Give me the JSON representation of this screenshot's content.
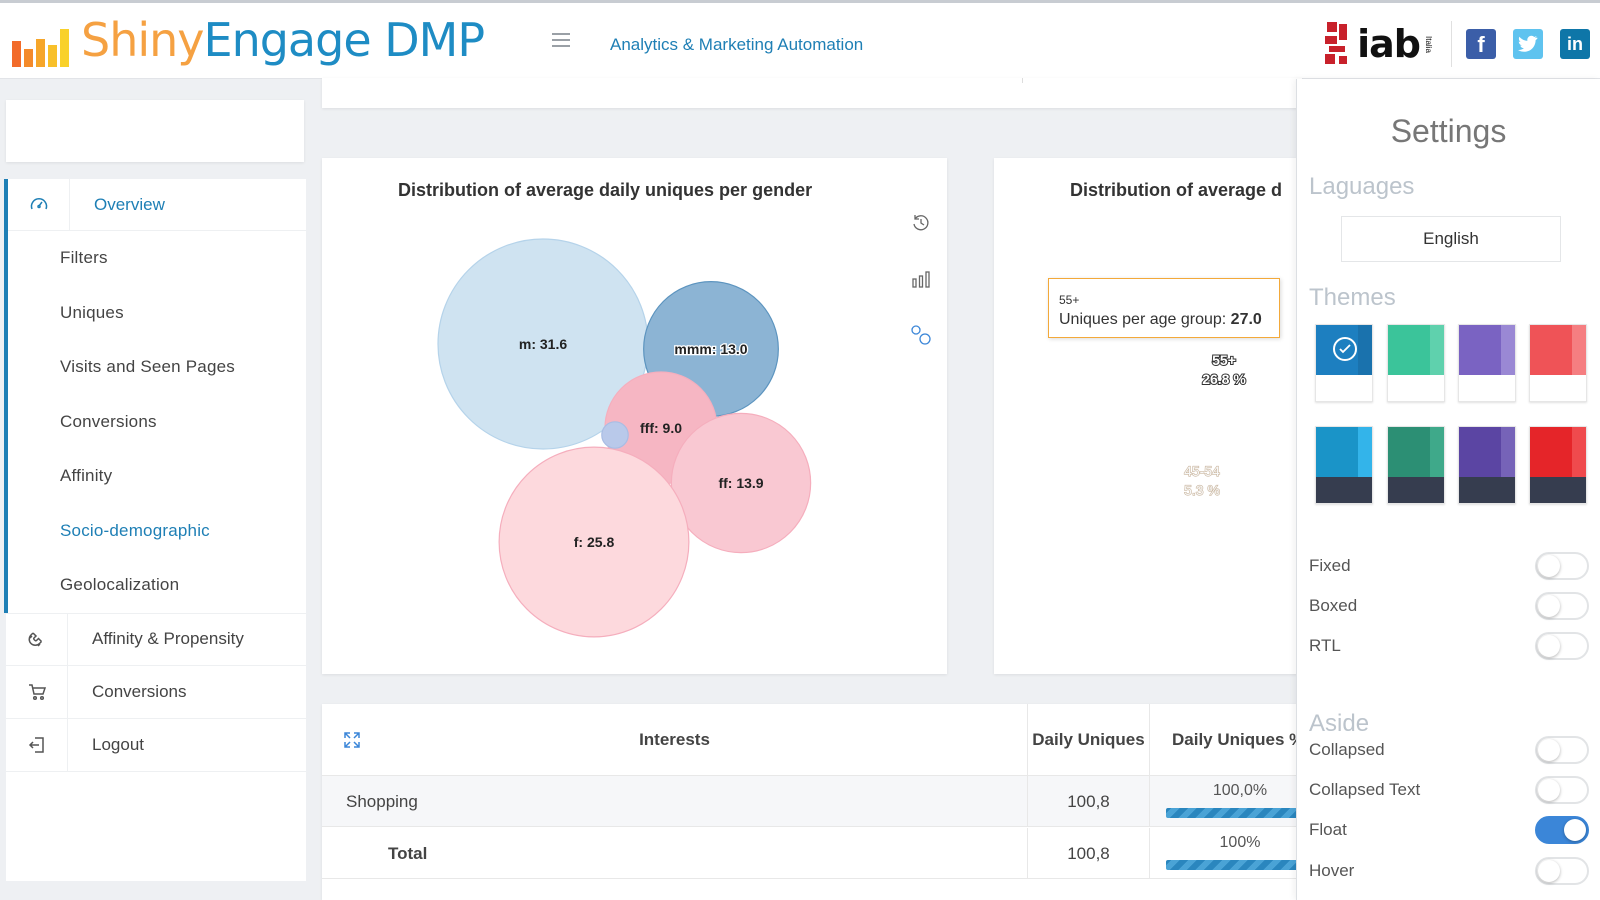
{
  "header": {
    "logo_shiny": "Shiny",
    "logo_engage": "Engage DMP",
    "tagline": "Analytics & Marketing Automation",
    "brand_logo_text": "iab",
    "brand_logo_sub": "Italia"
  },
  "sidebar": {
    "menu": [
      {
        "label": "Overview",
        "icon": "gauge-icon"
      },
      {
        "label": "Affinity & Propensity",
        "icon": "magnet-icon"
      },
      {
        "label": "Conversions",
        "icon": "cart-icon"
      },
      {
        "label": "Logout",
        "icon": "logout-icon"
      }
    ],
    "submenu": [
      {
        "label": "Filters"
      },
      {
        "label": "Uniques"
      },
      {
        "label": "Visits and Seen Pages"
      },
      {
        "label": "Conversions"
      },
      {
        "label": "Affinity"
      },
      {
        "label": "Socio-demographic"
      },
      {
        "label": "Geolocalization"
      }
    ]
  },
  "gender_chart": {
    "title": "Distribution of average daily uniques per gender"
  },
  "age_chart": {
    "title": "Distribution of average d",
    "tooltip_label": "55+",
    "tooltip_text": "Uniques per age group: ",
    "tooltip_value": "27.0"
  },
  "chart_data": [
    {
      "type": "bubble",
      "title": "Distribution of average daily uniques per gender",
      "bubbles": [
        {
          "label": "m",
          "value": 31.6,
          "display": "m: 31.6",
          "color": "#cfe3f1"
        },
        {
          "label": "mmm",
          "value": 13.0,
          "display": "mmm: 13.0",
          "color": "#8cb4d4"
        },
        {
          "label": "fff",
          "value": 9.0,
          "display": "fff: 9.0",
          "color": "#f6b6c3"
        },
        {
          "label": "ff",
          "value": 13.9,
          "display": "ff: 13.9",
          "color": "#f9c8d2"
        },
        {
          "label": "f",
          "value": 25.8,
          "display": "f: 25.8",
          "color": "#fdd9dd"
        },
        {
          "label": "",
          "value": 0.5,
          "display": "",
          "color": "#b9c9ea"
        }
      ]
    },
    {
      "type": "pie",
      "title": "Distribution of average d",
      "slices": [
        {
          "label": "55+",
          "value": 27.0,
          "percent": "26.8 %",
          "color": "#f5a623"
        },
        {
          "label": "45-54",
          "value": 5.3,
          "percent": "5.3 %",
          "color": "#fde1bf"
        },
        {
          "label": "",
          "value": null,
          "percent": "",
          "color": "#ffefde"
        }
      ]
    }
  ],
  "table": {
    "headers": [
      "Interests",
      "Daily Uniques",
      "Daily Uniques %"
    ],
    "rows": [
      {
        "name": "Shopping",
        "uniques": "100,8",
        "percent": "100,0%",
        "fill": 1.0
      },
      {
        "name": "Total",
        "uniques": "100,8",
        "percent": "100%",
        "fill": 1.0
      }
    ]
  },
  "settings": {
    "title": "Settings",
    "languages_label": "Laguages",
    "language_value": "English",
    "themes_label": "Themes",
    "themes": [
      {
        "name": "blue-light",
        "main": "#1d7fc0",
        "side": "#1a72ad",
        "bottom": "#ffffff",
        "selected": true
      },
      {
        "name": "teal-light",
        "main": "#3bc49a",
        "side": "#5fd1ad",
        "bottom": "#ffffff",
        "selected": false
      },
      {
        "name": "purple-light",
        "main": "#7a63c2",
        "side": "#9a88d4",
        "bottom": "#ffffff",
        "selected": false
      },
      {
        "name": "red-light",
        "main": "#ef5357",
        "side": "#f57e81",
        "bottom": "#ffffff",
        "selected": false
      },
      {
        "name": "blue-dark",
        "main": "#1a94c8",
        "side": "#33b4ea",
        "bottom": "#363d4f",
        "selected": false
      },
      {
        "name": "teal-dark",
        "main": "#2c8f74",
        "side": "#3fa98a",
        "bottom": "#363d4f",
        "selected": false
      },
      {
        "name": "purple-dark",
        "main": "#5b45a3",
        "side": "#7663b8",
        "bottom": "#363d4f",
        "selected": false
      },
      {
        "name": "red-dark",
        "main": "#e52529",
        "side": "#ef4a4d",
        "bottom": "#363d4f",
        "selected": false
      }
    ],
    "options": [
      {
        "label": "Fixed",
        "on": false
      },
      {
        "label": "Boxed",
        "on": false
      },
      {
        "label": "RTL",
        "on": false
      }
    ],
    "aside_label": "Aside",
    "aside_options": [
      {
        "label": "Collapsed",
        "on": false
      },
      {
        "label": "Collapsed Text",
        "on": false
      },
      {
        "label": "Float",
        "on": true
      },
      {
        "label": "Hover",
        "on": false
      }
    ]
  }
}
